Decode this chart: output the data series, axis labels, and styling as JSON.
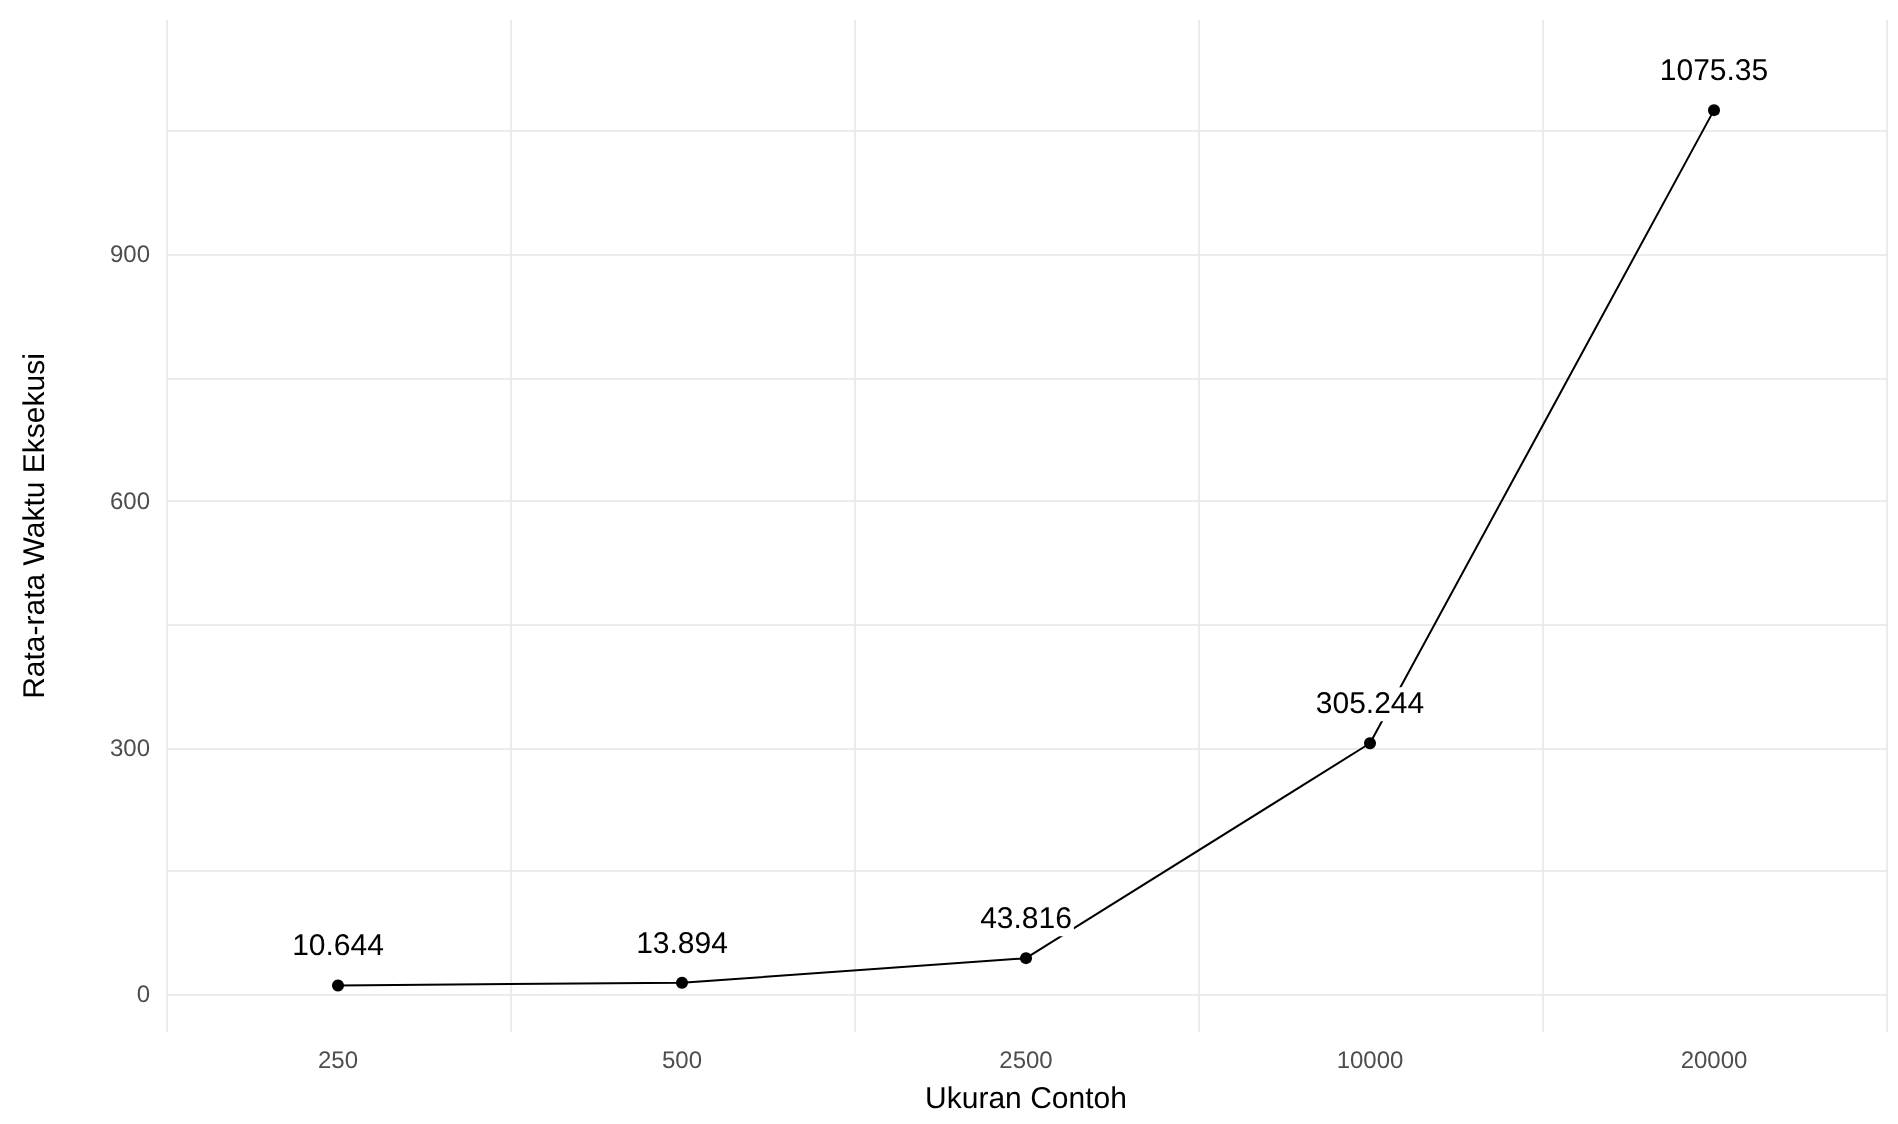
{
  "chart_data": {
    "type": "line",
    "xlabel": "Ukuran Contoh",
    "ylabel": "Rata-rata Waktu Eksekusi",
    "categories": [
      "250",
      "500",
      "2500",
      "10000",
      "20000"
    ],
    "series": [
      {
        "color": "#000000",
        "values": [
          10.644,
          13.894,
          43.816,
          305.244,
          1075.35
        ]
      }
    ],
    "ylim": [
      -46,
      1185
    ],
    "yticks": [
      0,
      {
        "value": 150,
        "label": null
      },
      300,
      {
        "value": 450,
        "label": null
      },
      600,
      {
        "value": 750,
        "label": null
      },
      900,
      {
        "value": 1050,
        "label": null
      }
    ],
    "grid": true,
    "marker": "circle",
    "line_style": "solid",
    "data_labels": true
  }
}
